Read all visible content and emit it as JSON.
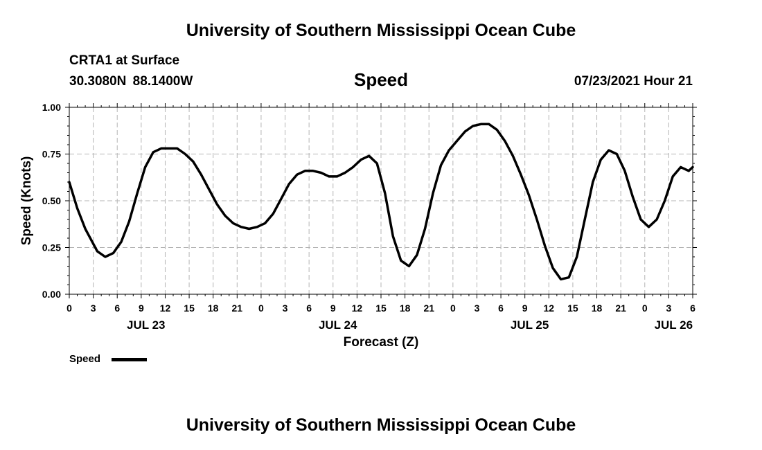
{
  "header": {
    "title": "University of Southern Mississippi Ocean Cube",
    "station": "CRTA1 at Surface",
    "coordinates": "30.3080N 88.1400W",
    "variable": "Speed",
    "datetime": "07/23/2021 Hour 21"
  },
  "footer": {
    "title": "University of Southern Mississippi Ocean Cube"
  },
  "legend": {
    "label": "Speed"
  },
  "chart_data": {
    "type": "line",
    "title": "Speed",
    "xlabel": "Forecast (Z)",
    "ylabel": "Speed (Knots)",
    "xlim": [
      0,
      78
    ],
    "ylim": [
      0,
      1
    ],
    "grid": true,
    "yticks": [
      "0.00",
      "0.25",
      "0.50",
      "0.75",
      "1.00"
    ],
    "ytick_values": [
      0,
      0.25,
      0.5,
      0.75,
      1.0
    ],
    "xtick_labels": [
      "0",
      "3",
      "6",
      "9",
      "12",
      "15",
      "18",
      "21",
      "0",
      "3",
      "6",
      "9",
      "12",
      "15",
      "18",
      "21",
      "0",
      "3",
      "6",
      "9",
      "12",
      "15",
      "18",
      "21",
      "0",
      "3",
      "6"
    ],
    "date_labels": [
      {
        "label": "JUL 23",
        "hour": 9.6
      },
      {
        "label": "JUL 24",
        "hour": 33.6
      },
      {
        "label": "JUL 25",
        "hour": 57.6
      },
      {
        "label": "JUL 26",
        "hour": 75.6
      }
    ],
    "series": [
      {
        "name": "Speed",
        "color": "#000000",
        "x": [
          0,
          1,
          2,
          3,
          3.5,
          4.5,
          5.5,
          6.5,
          7.5,
          8.5,
          9.5,
          10.5,
          11.5,
          12.5,
          13.5,
          14.5,
          15.5,
          16.5,
          17.5,
          18.5,
          19.5,
          20.5,
          21.5,
          22.5,
          23.5,
          24.5,
          25.5,
          26.5,
          27.5,
          28.5,
          29.5,
          30.5,
          31.5,
          32.5,
          33.5,
          34.5,
          35.5,
          36.5,
          37.5,
          38.5,
          39.5,
          40.5,
          41.5,
          42.5,
          43.5,
          44.5,
          45.5,
          46.5,
          47.5,
          48.5,
          49.5,
          50.5,
          51.5,
          52.5,
          53.5,
          54.5,
          55.5,
          56.5,
          57.5,
          58.5,
          59.5,
          60.5,
          61.5,
          62.5,
          63.5,
          64.5,
          65.5,
          66.5,
          67.5,
          68.5,
          69.5,
          70.5,
          71.5,
          72.5,
          73.5,
          74.5,
          75.5,
          76.5,
          77.5,
          78
        ],
        "values": [
          0.6,
          0.46,
          0.35,
          0.27,
          0.23,
          0.2,
          0.22,
          0.28,
          0.39,
          0.54,
          0.68,
          0.76,
          0.78,
          0.78,
          0.78,
          0.75,
          0.71,
          0.64,
          0.56,
          0.48,
          0.42,
          0.38,
          0.36,
          0.35,
          0.36,
          0.38,
          0.43,
          0.51,
          0.59,
          0.64,
          0.66,
          0.66,
          0.65,
          0.63,
          0.63,
          0.65,
          0.68,
          0.72,
          0.74,
          0.7,
          0.54,
          0.31,
          0.18,
          0.15,
          0.21,
          0.35,
          0.54,
          0.69,
          0.77,
          0.82,
          0.87,
          0.9,
          0.91,
          0.91,
          0.88,
          0.82,
          0.74,
          0.64,
          0.53,
          0.4,
          0.26,
          0.14,
          0.08,
          0.09,
          0.2,
          0.4,
          0.6,
          0.72,
          0.77,
          0.75,
          0.66,
          0.52,
          0.4,
          0.36,
          0.4,
          0.5,
          0.63,
          0.68,
          0.66,
          0.68
        ]
      }
    ]
  }
}
